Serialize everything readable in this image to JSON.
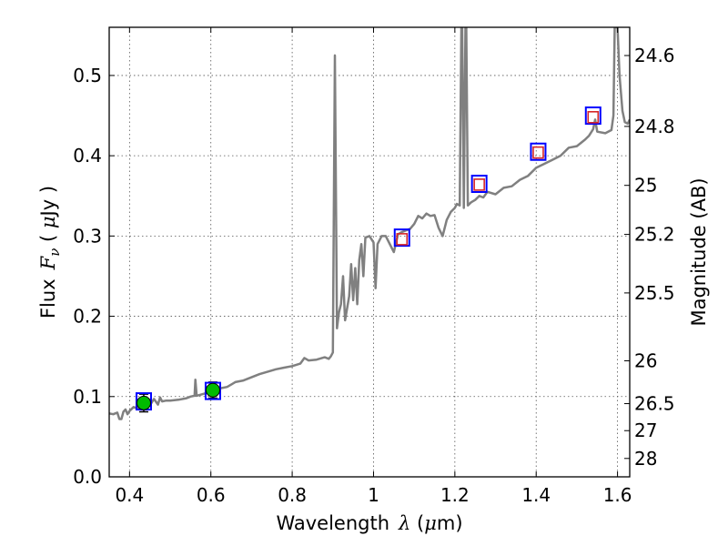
{
  "chart_data": {
    "type": "line",
    "title": "",
    "xlabel": {
      "prefix": "Wavelength",
      "symbol": "λ",
      "unit_open": " (",
      "unit_mu": "μ",
      "unit_rest": "m)"
    },
    "ylabel": {
      "prefix": "Flux",
      "symbol": "F",
      "subscript": "ν",
      "unit_open": " ( ",
      "unit_mu": "μ",
      "unit_rest": "Jy )"
    },
    "y2label": "Magnitude (AB)",
    "xlim": [
      0.35,
      1.63
    ],
    "ylim": [
      0.0,
      0.56
    ],
    "grid": true,
    "x_ticks": [
      {
        "v": 0.4,
        "label": "0.4"
      },
      {
        "v": 0.6,
        "label": "0.6"
      },
      {
        "v": 0.8,
        "label": "0.8"
      },
      {
        "v": 1.0,
        "label": "1"
      },
      {
        "v": 1.2,
        "label": "1.2"
      },
      {
        "v": 1.4,
        "label": "1.4"
      },
      {
        "v": 1.6,
        "label": "1.6"
      }
    ],
    "y_ticks": [
      {
        "v": 0.0,
        "label": "0.0"
      },
      {
        "v": 0.1,
        "label": "0.1"
      },
      {
        "v": 0.2,
        "label": "0.2"
      },
      {
        "v": 0.3,
        "label": "0.3"
      },
      {
        "v": 0.4,
        "label": "0.4"
      },
      {
        "v": 0.5,
        "label": "0.5"
      }
    ],
    "y2_ticks": [
      {
        "mag": 24.6,
        "label": "24.6"
      },
      {
        "mag": 24.8,
        "label": "24.8"
      },
      {
        "mag": 25.0,
        "label": "25"
      },
      {
        "mag": 25.2,
        "label": "25.2"
      },
      {
        "mag": 25.5,
        "label": "25.5"
      },
      {
        "mag": 26.0,
        "label": "26"
      },
      {
        "mag": 26.5,
        "label": "26.5"
      },
      {
        "mag": 27.0,
        "label": "27"
      },
      {
        "mag": 28.0,
        "label": "28"
      }
    ],
    "colors": {
      "sed_line": "#808080",
      "model_square": "#0000ff",
      "observed_square": "#d62728",
      "observed_circle": "#00bb00",
      "grid": "#555555"
    },
    "series": [
      {
        "kind": "sed_model",
        "points": [
          [
            0.35,
            0.079
          ],
          [
            0.36,
            0.078
          ],
          [
            0.37,
            0.08
          ],
          [
            0.375,
            0.072
          ],
          [
            0.38,
            0.072
          ],
          [
            0.385,
            0.081
          ],
          [
            0.39,
            0.084
          ],
          [
            0.395,
            0.078
          ],
          [
            0.4,
            0.082
          ],
          [
            0.41,
            0.087
          ],
          [
            0.42,
            0.085
          ],
          [
            0.43,
            0.089
          ],
          [
            0.44,
            0.091
          ],
          [
            0.45,
            0.089
          ],
          [
            0.46,
            0.097
          ],
          [
            0.47,
            0.09
          ],
          [
            0.475,
            0.099
          ],
          [
            0.48,
            0.094
          ],
          [
            0.49,
            0.095
          ],
          [
            0.5,
            0.095
          ],
          [
            0.52,
            0.096
          ],
          [
            0.54,
            0.098
          ],
          [
            0.55,
            0.1
          ],
          [
            0.56,
            0.101
          ],
          [
            0.562,
            0.121
          ],
          [
            0.565,
            0.101
          ],
          [
            0.58,
            0.103
          ],
          [
            0.6,
            0.106
          ],
          [
            0.62,
            0.11
          ],
          [
            0.64,
            0.112
          ],
          [
            0.65,
            0.115
          ],
          [
            0.66,
            0.118
          ],
          [
            0.68,
            0.12
          ],
          [
            0.7,
            0.124
          ],
          [
            0.72,
            0.128
          ],
          [
            0.74,
            0.131
          ],
          [
            0.76,
            0.134
          ],
          [
            0.78,
            0.136
          ],
          [
            0.8,
            0.138
          ],
          [
            0.82,
            0.141
          ],
          [
            0.83,
            0.148
          ],
          [
            0.84,
            0.145
          ],
          [
            0.86,
            0.146
          ],
          [
            0.88,
            0.149
          ],
          [
            0.89,
            0.147
          ],
          [
            0.895,
            0.15
          ],
          [
            0.9,
            0.155
          ],
          [
            0.905,
            0.525
          ],
          [
            0.91,
            0.185
          ],
          [
            0.915,
            0.205
          ],
          [
            0.92,
            0.215
          ],
          [
            0.925,
            0.25
          ],
          [
            0.93,
            0.195
          ],
          [
            0.94,
            0.225
          ],
          [
            0.945,
            0.265
          ],
          [
            0.95,
            0.22
          ],
          [
            0.955,
            0.26
          ],
          [
            0.96,
            0.215
          ],
          [
            0.965,
            0.27
          ],
          [
            0.97,
            0.29
          ],
          [
            0.975,
            0.25
          ],
          [
            0.98,
            0.298
          ],
          [
            0.99,
            0.3
          ],
          [
            1.0,
            0.292
          ],
          [
            1.005,
            0.235
          ],
          [
            1.01,
            0.29
          ],
          [
            1.02,
            0.3
          ],
          [
            1.03,
            0.3
          ],
          [
            1.05,
            0.28
          ],
          [
            1.06,
            0.302
          ],
          [
            1.07,
            0.305
          ],
          [
            1.09,
            0.309
          ],
          [
            1.1,
            0.315
          ],
          [
            1.11,
            0.325
          ],
          [
            1.12,
            0.322
          ],
          [
            1.13,
            0.328
          ],
          [
            1.14,
            0.325
          ],
          [
            1.15,
            0.326
          ],
          [
            1.16,
            0.31
          ],
          [
            1.17,
            0.3
          ],
          [
            1.18,
            0.32
          ],
          [
            1.19,
            0.33
          ],
          [
            1.2,
            0.335
          ],
          [
            1.205,
            0.34
          ],
          [
            1.212,
            0.338
          ],
          [
            1.216,
            0.56
          ],
          [
            1.218,
            0.56
          ],
          [
            1.222,
            0.335
          ],
          [
            1.226,
            0.56
          ],
          [
            1.228,
            0.56
          ],
          [
            1.232,
            0.338
          ],
          [
            1.24,
            0.342
          ],
          [
            1.25,
            0.345
          ],
          [
            1.26,
            0.35
          ],
          [
            1.27,
            0.348
          ],
          [
            1.28,
            0.355
          ],
          [
            1.3,
            0.352
          ],
          [
            1.32,
            0.36
          ],
          [
            1.34,
            0.362
          ],
          [
            1.36,
            0.37
          ],
          [
            1.38,
            0.375
          ],
          [
            1.4,
            0.385
          ],
          [
            1.42,
            0.39
          ],
          [
            1.44,
            0.395
          ],
          [
            1.46,
            0.4
          ],
          [
            1.48,
            0.41
          ],
          [
            1.5,
            0.412
          ],
          [
            1.52,
            0.42
          ],
          [
            1.53,
            0.425
          ],
          [
            1.54,
            0.433
          ],
          [
            1.545,
            0.445
          ],
          [
            1.55,
            0.43
          ],
          [
            1.57,
            0.428
          ],
          [
            1.585,
            0.432
          ],
          [
            1.59,
            0.45
          ],
          [
            1.593,
            0.56
          ],
          [
            1.6,
            0.56
          ],
          [
            1.605,
            0.5
          ],
          [
            1.612,
            0.456
          ],
          [
            1.618,
            0.442
          ],
          [
            1.625,
            0.44
          ],
          [
            1.63,
            0.445
          ]
        ]
      },
      {
        "kind": "model_photometry",
        "points": [
          [
            0.435,
            0.094
          ],
          [
            0.605,
            0.107
          ],
          [
            1.07,
            0.298
          ],
          [
            1.26,
            0.365
          ],
          [
            1.405,
            0.405
          ],
          [
            1.54,
            0.45
          ]
        ]
      },
      {
        "kind": "observed_photometry",
        "points": [
          {
            "x": 1.07,
            "y": 0.296,
            "marker": "square"
          },
          {
            "x": 1.26,
            "y": 0.364,
            "marker": "square"
          },
          {
            "x": 1.405,
            "y": 0.404,
            "marker": "square"
          },
          {
            "x": 1.54,
            "y": 0.448,
            "marker": "square"
          },
          {
            "x": 0.435,
            "y": 0.092,
            "marker": "circle",
            "err": 0.011
          },
          {
            "x": 0.605,
            "y": 0.108,
            "marker": "circle",
            "err": 0.01
          }
        ]
      }
    ]
  }
}
